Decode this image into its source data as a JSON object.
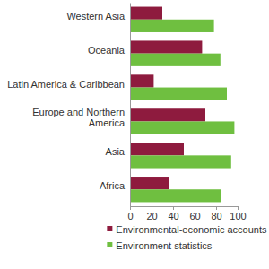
{
  "chart_data": {
    "type": "bar",
    "orientation": "horizontal",
    "categories": [
      "Western Asia",
      "Oceania",
      "Latin America & Caribbean",
      "Europe and Northern America",
      "Asia",
      "Africa"
    ],
    "series": [
      {
        "name": "Environmental-economic accounts",
        "color": "#8e1b3e",
        "values": [
          30,
          67,
          22,
          70,
          50,
          36
        ]
      },
      {
        "name": "Environment statistics",
        "color": "#6fbf40",
        "values": [
          78,
          84,
          90,
          97,
          94,
          85
        ]
      }
    ],
    "xlim": [
      0,
      100
    ],
    "xticks": [
      0,
      20,
      40,
      60,
      80,
      100
    ],
    "grid": false,
    "legend": "bottom"
  }
}
